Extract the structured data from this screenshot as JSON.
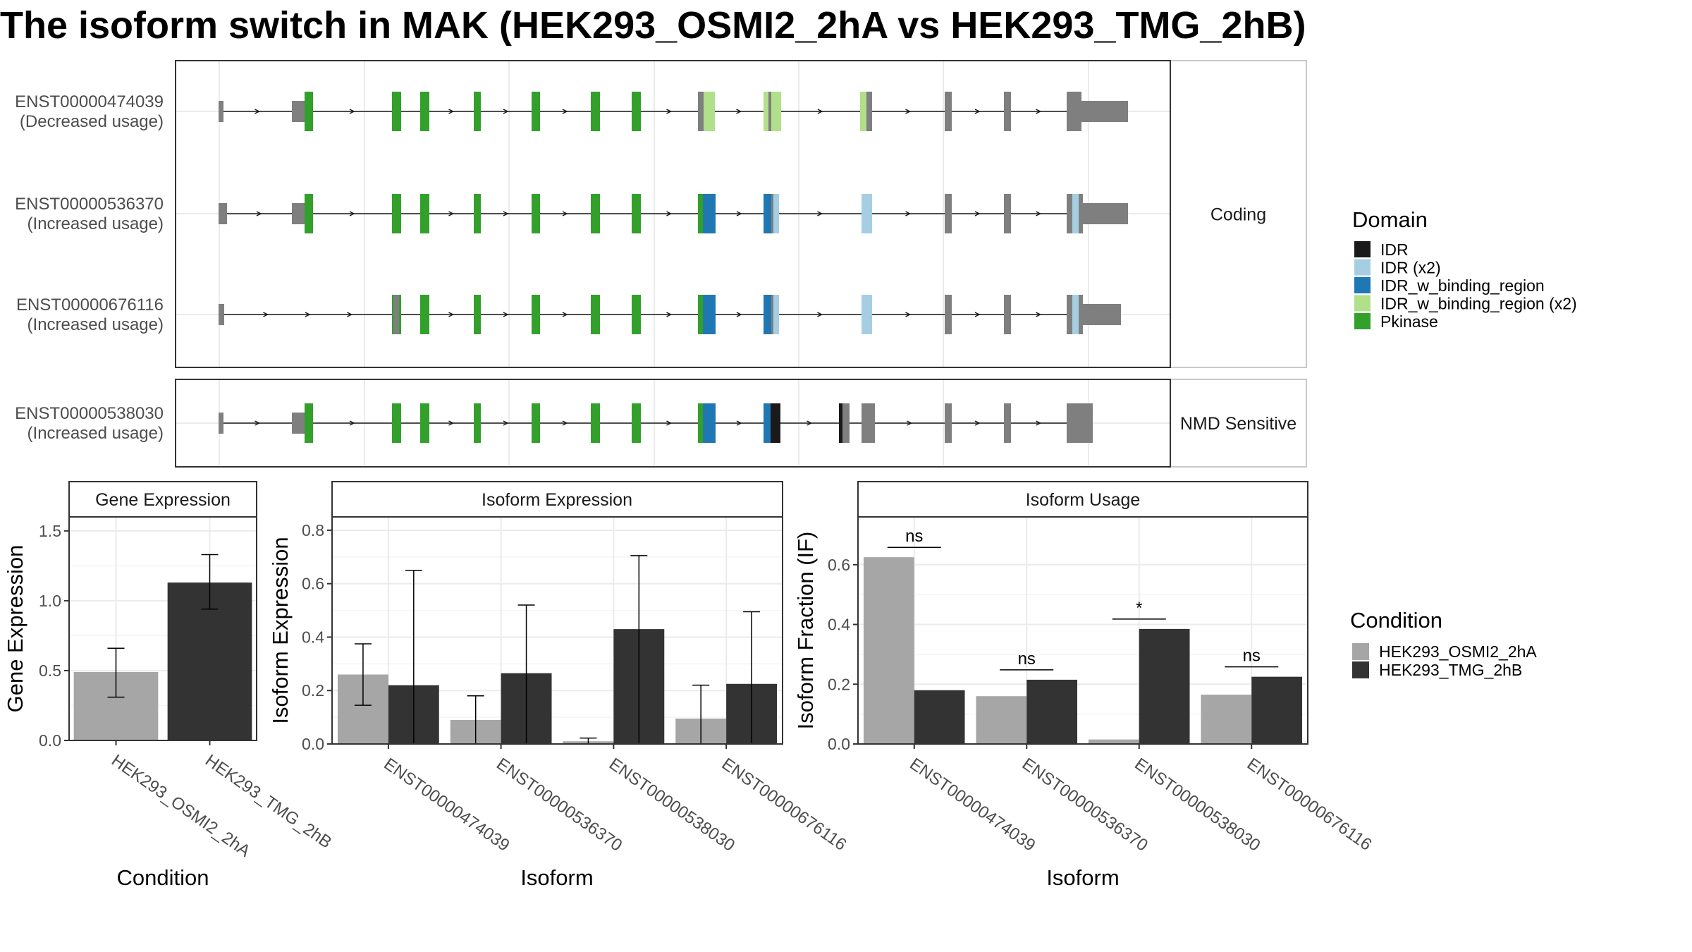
{
  "title": "The isoform switch in MAK (HEK293_OSMI2_2hA vs HEK293_TMG_2hB)",
  "colors": {
    "IDR": "#1a1a1a",
    "IDR (x2)": "#a6cee3",
    "IDR_w_binding_region": "#1f78b4",
    "IDR_w_binding_region (x2)": "#b2df8a",
    "Pkinase": "#33a02c",
    "exon": "#7f7f7f",
    "cond_a": "#a6a6a6",
    "cond_b": "#333333"
  },
  "structure": {
    "facets": [
      "Coding",
      "NMD Sensitive"
    ],
    "transcripts": [
      {
        "id": "ENST00000474039",
        "usage": "(Decreased usage)",
        "facet": "Coding"
      },
      {
        "id": "ENST00000536370",
        "usage": "(Increased usage)",
        "facet": "Coding"
      },
      {
        "id": "ENST00000676116",
        "usage": "(Increased usage)",
        "facet": "Coding"
      },
      {
        "id": "ENST00000538030",
        "usage": "(Increased usage)",
        "facet": "NMD Sensitive"
      }
    ]
  },
  "legend_domain": {
    "title": "Domain",
    "items": [
      "IDR",
      "IDR (x2)",
      "IDR_w_binding_region",
      "IDR_w_binding_region (x2)",
      "Pkinase"
    ]
  },
  "legend_condition": {
    "title": "Condition",
    "items": [
      "HEK293_OSMI2_2hA",
      "HEK293_TMG_2hB"
    ]
  },
  "chart_data": [
    {
      "type": "bar",
      "title": "Gene Expression",
      "xlabel": "Condition",
      "ylabel": "Gene Expression",
      "ylim": [
        0,
        1.6
      ],
      "yticks": [
        0.0,
        0.5,
        1.0,
        1.5
      ],
      "ytick_labels": [
        "0.0",
        "0.5",
        "1.0",
        "1.5"
      ],
      "categories": [
        "HEK293_OSMI2_2hA",
        "HEK293_TMG_2hB"
      ],
      "values": [
        0.49,
        1.13
      ],
      "error_low": [
        0.31,
        0.94
      ],
      "error_high": [
        0.66,
        1.33
      ]
    },
    {
      "type": "bar",
      "title": "Isoform Expression",
      "xlabel": "Isoform",
      "ylabel": "Isoform Expression",
      "ylim": [
        0,
        0.85
      ],
      "yticks": [
        0.0,
        0.2,
        0.4,
        0.6,
        0.8
      ],
      "ytick_labels": [
        "0.0",
        "0.2",
        "0.4",
        "0.6",
        "0.8"
      ],
      "categories": [
        "ENST00000474039",
        "ENST00000536370",
        "ENST00000538030",
        "ENST00000676116"
      ],
      "series": [
        {
          "name": "HEK293_OSMI2_2hA",
          "values": [
            0.26,
            0.09,
            0.01,
            0.095
          ],
          "error_low": [
            0.145,
            0.0,
            0.0,
            0.0
          ],
          "error_high": [
            0.375,
            0.18,
            0.022,
            0.22
          ]
        },
        {
          "name": "HEK293_TMG_2hB",
          "values": [
            0.22,
            0.265,
            0.43,
            0.225
          ],
          "error_low": [
            0.0,
            0.0,
            0.0,
            0.0
          ],
          "error_high": [
            0.65,
            0.52,
            0.705,
            0.495
          ]
        }
      ]
    },
    {
      "type": "bar",
      "title": "Isoform Usage",
      "xlabel": "Isoform",
      "ylabel": "Isoform Fraction (IF)",
      "ylim": [
        0,
        0.76
      ],
      "yticks": [
        0.0,
        0.2,
        0.4,
        0.6
      ],
      "ytick_labels": [
        "0.0",
        "0.2",
        "0.4",
        "0.6"
      ],
      "categories": [
        "ENST00000474039",
        "ENST00000536370",
        "ENST00000538030",
        "ENST00000676116"
      ],
      "series": [
        {
          "name": "HEK293_OSMI2_2hA",
          "values": [
            0.625,
            0.16,
            0.015,
            0.165
          ]
        },
        {
          "name": "HEK293_TMG_2hB",
          "values": [
            0.18,
            0.215,
            0.385,
            0.225
          ]
        }
      ],
      "significance": [
        "ns",
        "ns",
        "*",
        "ns"
      ]
    }
  ]
}
